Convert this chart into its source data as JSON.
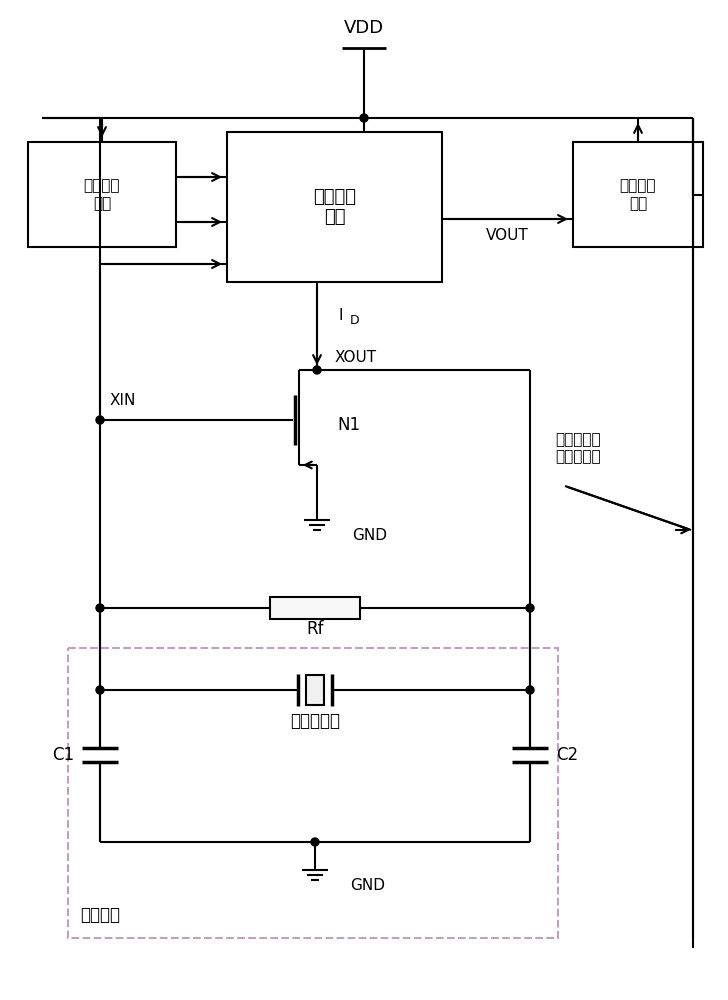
{
  "bg_color": "#ffffff",
  "lc": "#000000",
  "dashed_color": "#c0a0c0",
  "labels": {
    "VDD": "VDD",
    "VOUT": "VOUT",
    "ID": "I_D",
    "XOUT": "XOUT",
    "XIN": "XIN",
    "N1": "N1",
    "GND": "GND",
    "Rf": "Rf",
    "crystal": "晶体振荡器",
    "C1": "C1",
    "C2": "C2",
    "freq_net": "选频网络",
    "prog_src": "可编程电\n流源",
    "freq_ctrl": "频偏控制\n电路",
    "freq_detect": "频偏检测\n模块",
    "freq_ctrl_crystal": "频偏控制晶\n体振荡电路"
  },
  "fig_w": 7.28,
  "fig_h": 10.0,
  "dpi": 100
}
